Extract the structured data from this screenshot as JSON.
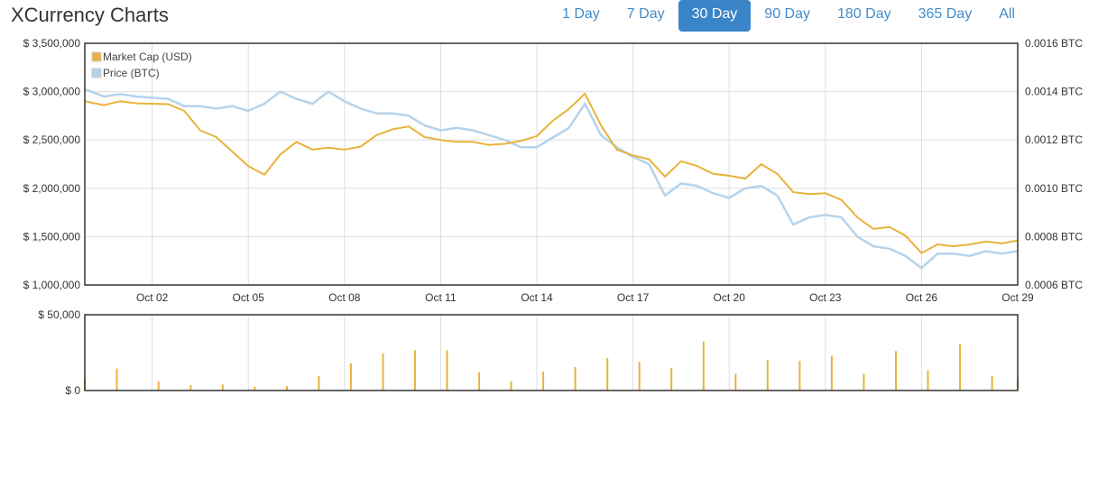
{
  "header": {
    "title": "XCurrency Charts"
  },
  "range_buttons": [
    {
      "label": "1 Day",
      "active": false
    },
    {
      "label": "7 Day",
      "active": false
    },
    {
      "label": "30 Day",
      "active": true
    },
    {
      "label": "90 Day",
      "active": false
    },
    {
      "label": "180 Day",
      "active": false
    },
    {
      "label": "365 Day",
      "active": false
    },
    {
      "label": "All",
      "active": false
    }
  ],
  "colors": {
    "market_cap": "#e8b33a",
    "price": "#b6d3ea",
    "grid": "#dddddd",
    "axis": "#333333"
  },
  "chart_data": [
    {
      "type": "line",
      "x_tick_labels": [
        "Oct 02",
        "Oct 05",
        "Oct 08",
        "Oct 11",
        "Oct 14",
        "Oct 17",
        "Oct 20",
        "Oct 23",
        "Oct 26",
        "Oct 29"
      ],
      "x_tick_days": [
        2,
        5,
        8,
        11,
        14,
        17,
        20,
        23,
        26,
        29
      ],
      "xlim_days": [
        -0.1,
        29.0
      ],
      "y_left": {
        "min": 1000000,
        "max": 3500000,
        "tick_values": [
          1000000,
          1500000,
          2000000,
          2500000,
          3000000,
          3500000
        ],
        "tick_labels": [
          "$ 1,000,000",
          "$ 1,500,000",
          "$ 2,000,000",
          "$ 2,500,000",
          "$ 3,000,000",
          "$ 3,500,000"
        ]
      },
      "y_right": {
        "min": 0.0006,
        "max": 0.0016,
        "tick_values": [
          0.0006,
          0.0008,
          0.001,
          0.0012,
          0.0014,
          0.0016
        ],
        "tick_labels": [
          "0.0006 BTC",
          "0.0008 BTC",
          "0.0010 BTC",
          "0.0012 BTC",
          "0.0014 BTC",
          "0.0016 BTC"
        ]
      },
      "legend": {
        "position": "top-left",
        "entries": [
          "Market Cap (USD)",
          "Price (BTC)"
        ]
      },
      "grid": true,
      "series": [
        {
          "name": "Market Cap (USD)",
          "axis": "left",
          "points": [
            [
              -0.1,
              2900000
            ],
            [
              0.5,
              2860000
            ],
            [
              1.0,
              2900000
            ],
            [
              1.5,
              2880000
            ],
            [
              2.5,
              2870000
            ],
            [
              3.0,
              2800000
            ],
            [
              3.5,
              2600000
            ],
            [
              4.0,
              2530000
            ],
            [
              4.5,
              2380000
            ],
            [
              5.0,
              2230000
            ],
            [
              5.5,
              2140000
            ],
            [
              6.0,
              2350000
            ],
            [
              6.5,
              2480000
            ],
            [
              7.0,
              2400000
            ],
            [
              7.5,
              2420000
            ],
            [
              8.0,
              2400000
            ],
            [
              8.5,
              2430000
            ],
            [
              9.0,
              2550000
            ],
            [
              9.5,
              2610000
            ],
            [
              10.0,
              2640000
            ],
            [
              10.5,
              2530000
            ],
            [
              11.0,
              2500000
            ],
            [
              11.5,
              2480000
            ],
            [
              12.0,
              2480000
            ],
            [
              12.5,
              2450000
            ],
            [
              13.0,
              2460000
            ],
            [
              13.5,
              2490000
            ],
            [
              14.0,
              2540000
            ],
            [
              14.5,
              2700000
            ],
            [
              15.0,
              2820000
            ],
            [
              15.5,
              2980000
            ],
            [
              16.0,
              2650000
            ],
            [
              16.5,
              2400000
            ],
            [
              17.0,
              2340000
            ],
            [
              17.5,
              2300000
            ],
            [
              18.0,
              2120000
            ],
            [
              18.5,
              2280000
            ],
            [
              19.0,
              2230000
            ],
            [
              19.5,
              2150000
            ],
            [
              20.0,
              2130000
            ],
            [
              20.5,
              2100000
            ],
            [
              21.0,
              2250000
            ],
            [
              21.5,
              2150000
            ],
            [
              22.0,
              1960000
            ],
            [
              22.5,
              1940000
            ],
            [
              23.0,
              1950000
            ],
            [
              23.5,
              1880000
            ],
            [
              24.0,
              1700000
            ],
            [
              24.5,
              1580000
            ],
            [
              25.0,
              1600000
            ],
            [
              25.5,
              1510000
            ],
            [
              26.0,
              1330000
            ],
            [
              26.5,
              1420000
            ],
            [
              27.0,
              1400000
            ],
            [
              27.5,
              1420000
            ],
            [
              28.0,
              1450000
            ],
            [
              28.5,
              1430000
            ],
            [
              29.0,
              1460000
            ]
          ]
        },
        {
          "name": "Price (BTC)",
          "axis": "right",
          "points": [
            [
              -0.1,
              0.00141
            ],
            [
              0.5,
              0.00138
            ],
            [
              1.0,
              0.00139
            ],
            [
              1.5,
              0.00138
            ],
            [
              2.5,
              0.00137
            ],
            [
              3.0,
              0.00134
            ],
            [
              3.5,
              0.00134
            ],
            [
              4.0,
              0.00133
            ],
            [
              4.5,
              0.00134
            ],
            [
              5.0,
              0.00132
            ],
            [
              5.5,
              0.00135
            ],
            [
              6.0,
              0.0014
            ],
            [
              6.5,
              0.00137
            ],
            [
              7.0,
              0.00135
            ],
            [
              7.5,
              0.0014
            ],
            [
              8.0,
              0.00136
            ],
            [
              8.5,
              0.00133
            ],
            [
              9.0,
              0.00131
            ],
            [
              9.5,
              0.00131
            ],
            [
              10.0,
              0.0013
            ],
            [
              10.5,
              0.00126
            ],
            [
              11.0,
              0.00124
            ],
            [
              11.5,
              0.00125
            ],
            [
              12.0,
              0.00124
            ],
            [
              12.5,
              0.00122
            ],
            [
              13.0,
              0.0012
            ],
            [
              13.5,
              0.00117
            ],
            [
              14.0,
              0.00117
            ],
            [
              14.5,
              0.00121
            ],
            [
              15.0,
              0.00125
            ],
            [
              15.5,
              0.00135
            ],
            [
              16.0,
              0.00122
            ],
            [
              16.5,
              0.00117
            ],
            [
              17.0,
              0.00113
            ],
            [
              17.5,
              0.0011
            ],
            [
              18.0,
              0.00097
            ],
            [
              18.5,
              0.00102
            ],
            [
              19.0,
              0.00101
            ],
            [
              19.5,
              0.00098
            ],
            [
              20.0,
              0.00096
            ],
            [
              20.5,
              0.001
            ],
            [
              21.0,
              0.00101
            ],
            [
              21.5,
              0.00097
            ],
            [
              22.0,
              0.00085
            ],
            [
              22.5,
              0.00088
            ],
            [
              23.0,
              0.00089
            ],
            [
              23.5,
              0.00088
            ],
            [
              24.0,
              0.0008
            ],
            [
              24.5,
              0.00076
            ],
            [
              25.0,
              0.00075
            ],
            [
              25.5,
              0.00072
            ],
            [
              26.0,
              0.00067
            ],
            [
              26.5,
              0.00073
            ],
            [
              27.0,
              0.00073
            ],
            [
              27.5,
              0.00072
            ],
            [
              28.0,
              0.00074
            ],
            [
              28.5,
              0.00073
            ],
            [
              29.0,
              0.00074
            ]
          ]
        }
      ]
    },
    {
      "type": "bar",
      "series_name": "Volume",
      "x_tick_days": [
        2,
        5,
        8,
        11,
        14,
        17,
        20,
        23,
        26,
        29
      ],
      "xlim_days": [
        -0.1,
        29.0
      ],
      "ylim": [
        0,
        50000
      ],
      "y_tick_values": [
        0,
        50000
      ],
      "y_tick_labels": [
        "$ 0",
        "$ 50,000"
      ],
      "grid": true,
      "bars": [
        [
          -0.1,
          8000
        ],
        [
          0.9,
          14500
        ],
        [
          2.2,
          6000
        ],
        [
          3.2,
          3500
        ],
        [
          4.2,
          4000
        ],
        [
          5.2,
          2500
        ],
        [
          6.2,
          3000
        ],
        [
          7.2,
          9500
        ],
        [
          8.2,
          18000
        ],
        [
          9.2,
          24500
        ],
        [
          10.2,
          26500
        ],
        [
          11.2,
          26500
        ],
        [
          12.2,
          12000
        ],
        [
          13.2,
          6000
        ],
        [
          14.2,
          12500
        ],
        [
          15.2,
          15500
        ],
        [
          16.2,
          21500
        ],
        [
          17.2,
          19000
        ],
        [
          18.2,
          15000
        ],
        [
          19.2,
          32500
        ],
        [
          20.2,
          11000
        ],
        [
          21.2,
          20000
        ],
        [
          22.2,
          19500
        ],
        [
          23.2,
          23000
        ],
        [
          24.2,
          11000
        ],
        [
          25.2,
          26000
        ],
        [
          26.2,
          13500
        ],
        [
          27.2,
          30500
        ],
        [
          28.2,
          9500
        ],
        [
          29.0,
          7500
        ]
      ]
    }
  ]
}
